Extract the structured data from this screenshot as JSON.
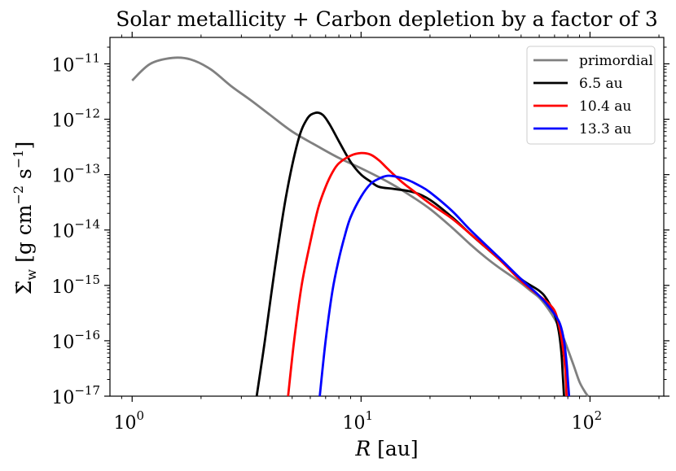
{
  "chart_data": {
    "type": "line",
    "title": "Solar metallicity + Carbon depletion by a factor of 3",
    "xlabel_symbol": "R",
    "xlabel_unit": "[au]",
    "ylabel_symbol": "Σ̇",
    "ylabel_sub": "w",
    "ylabel_unit_g": "[g cm",
    "ylabel_exp1": "−2",
    "ylabel_unit_s": " s",
    "ylabel_exp2": "−1",
    "ylabel_close": "]",
    "xscale": "log",
    "yscale": "log",
    "xlim": [
      0.8,
      210
    ],
    "ylim": [
      1e-17,
      3e-11
    ],
    "xticks": [
      {
        "value": 1,
        "base": "10",
        "exp": "0"
      },
      {
        "value": 10,
        "base": "10",
        "exp": "1"
      },
      {
        "value": 100,
        "base": "10",
        "exp": "2"
      }
    ],
    "yticks": [
      {
        "value": 1e-11,
        "base": "10",
        "exp": "−11"
      },
      {
        "value": 1e-12,
        "base": "10",
        "exp": "−12"
      },
      {
        "value": 1e-13,
        "base": "10",
        "exp": "−13"
      },
      {
        "value": 1e-14,
        "base": "10",
        "exp": "−14"
      },
      {
        "value": 1e-15,
        "base": "10",
        "exp": "−15"
      },
      {
        "value": 1e-16,
        "base": "10",
        "exp": "−16"
      },
      {
        "value": 1e-17,
        "base": "10",
        "exp": "−17"
      }
    ],
    "legend_position": "upper right",
    "series": [
      {
        "name": "primordial",
        "color": "#808080",
        "x": [
          1.0,
          1.2,
          1.5,
          1.8,
          2.2,
          2.7,
          3.3,
          4.0,
          5.0,
          6.5,
          8.0,
          10,
          13,
          16,
          20,
          25,
          30,
          35,
          40,
          45,
          50,
          55,
          60,
          65,
          70,
          75,
          80,
          85,
          90,
          95,
          98
        ],
        "y": [
          5e-12,
          1e-11,
          1.28e-11,
          1.2e-11,
          8e-12,
          4e-12,
          2.2e-12,
          1.2e-12,
          6e-13,
          3.2e-13,
          2e-13,
          1.3e-13,
          7.5e-14,
          4.5e-14,
          2.4e-14,
          1.1e-14,
          5.5e-15,
          3.2e-15,
          2.1e-15,
          1.5e-15,
          1.1e-15,
          8e-16,
          6e-16,
          4e-16,
          2.5e-16,
          1.4e-16,
          7e-17,
          3.5e-17,
          1.8e-17,
          1.2e-17,
          1e-17
        ]
      },
      {
        "name": "6.5 au",
        "color": "#000000",
        "x": [
          3.5,
          3.8,
          4.2,
          4.7,
          5.3,
          5.8,
          6.3,
          6.8,
          7.3,
          8.0,
          9.0,
          10,
          11,
          12,
          14,
          17,
          20,
          25,
          30,
          40,
          50,
          60,
          65,
          70,
          73,
          75,
          76,
          77
        ],
        "y": [
          1e-17,
          1e-16,
          2e-15,
          4e-14,
          4e-13,
          1e-12,
          1.3e-12,
          1.2e-12,
          8e-13,
          4e-13,
          1.7e-13,
          1e-13,
          7.5e-14,
          6e-14,
          5.5e-14,
          4.8e-14,
          3.5e-14,
          1.7e-14,
          8.5e-15,
          3e-15,
          1.3e-15,
          8e-16,
          5.5e-16,
          3e-16,
          1.5e-16,
          6e-17,
          2.5e-17,
          1e-17
        ]
      },
      {
        "name": "10.4 au",
        "color": "#ff0000",
        "x": [
          4.8,
          5.1,
          5.5,
          6.0,
          6.5,
          7.0,
          7.5,
          8.0,
          9.0,
          10,
          11,
          12,
          13,
          15,
          17,
          20,
          25,
          30,
          40,
          50,
          60,
          65,
          70,
          73,
          76,
          78,
          79
        ],
        "y": [
          1e-17,
          1e-16,
          1e-15,
          6e-15,
          2.5e-14,
          6e-14,
          1.1e-13,
          1.6e-13,
          2.2e-13,
          2.45e-13,
          2.3e-13,
          1.8e-13,
          1.3e-13,
          7.5e-14,
          5e-14,
          3e-14,
          1.6e-14,
          8.5e-15,
          3e-15,
          1.2e-15,
          6.5e-16,
          5e-16,
          3.5e-16,
          2e-16,
          8e-17,
          3e-17,
          1e-17
        ]
      },
      {
        "name": "13.3 au",
        "color": "#0000ff",
        "x": [
          6.6,
          7.0,
          7.5,
          8.0,
          8.5,
          9.0,
          10,
          11,
          12,
          13,
          14,
          16,
          18,
          20,
          25,
          30,
          40,
          50,
          60,
          65,
          70,
          74,
          77,
          79,
          80,
          81
        ],
        "y": [
          1e-17,
          1e-16,
          8e-16,
          3e-15,
          8e-15,
          1.7e-14,
          4e-14,
          6.8e-14,
          8.5e-14,
          9.5e-14,
          9.3e-14,
          8e-14,
          6.3e-14,
          4.8e-14,
          2.2e-14,
          1e-14,
          3.2e-15,
          1.3e-15,
          6.5e-16,
          4.5e-16,
          3e-16,
          2e-16,
          1e-16,
          4e-17,
          2e-17,
          1e-17
        ]
      }
    ]
  }
}
